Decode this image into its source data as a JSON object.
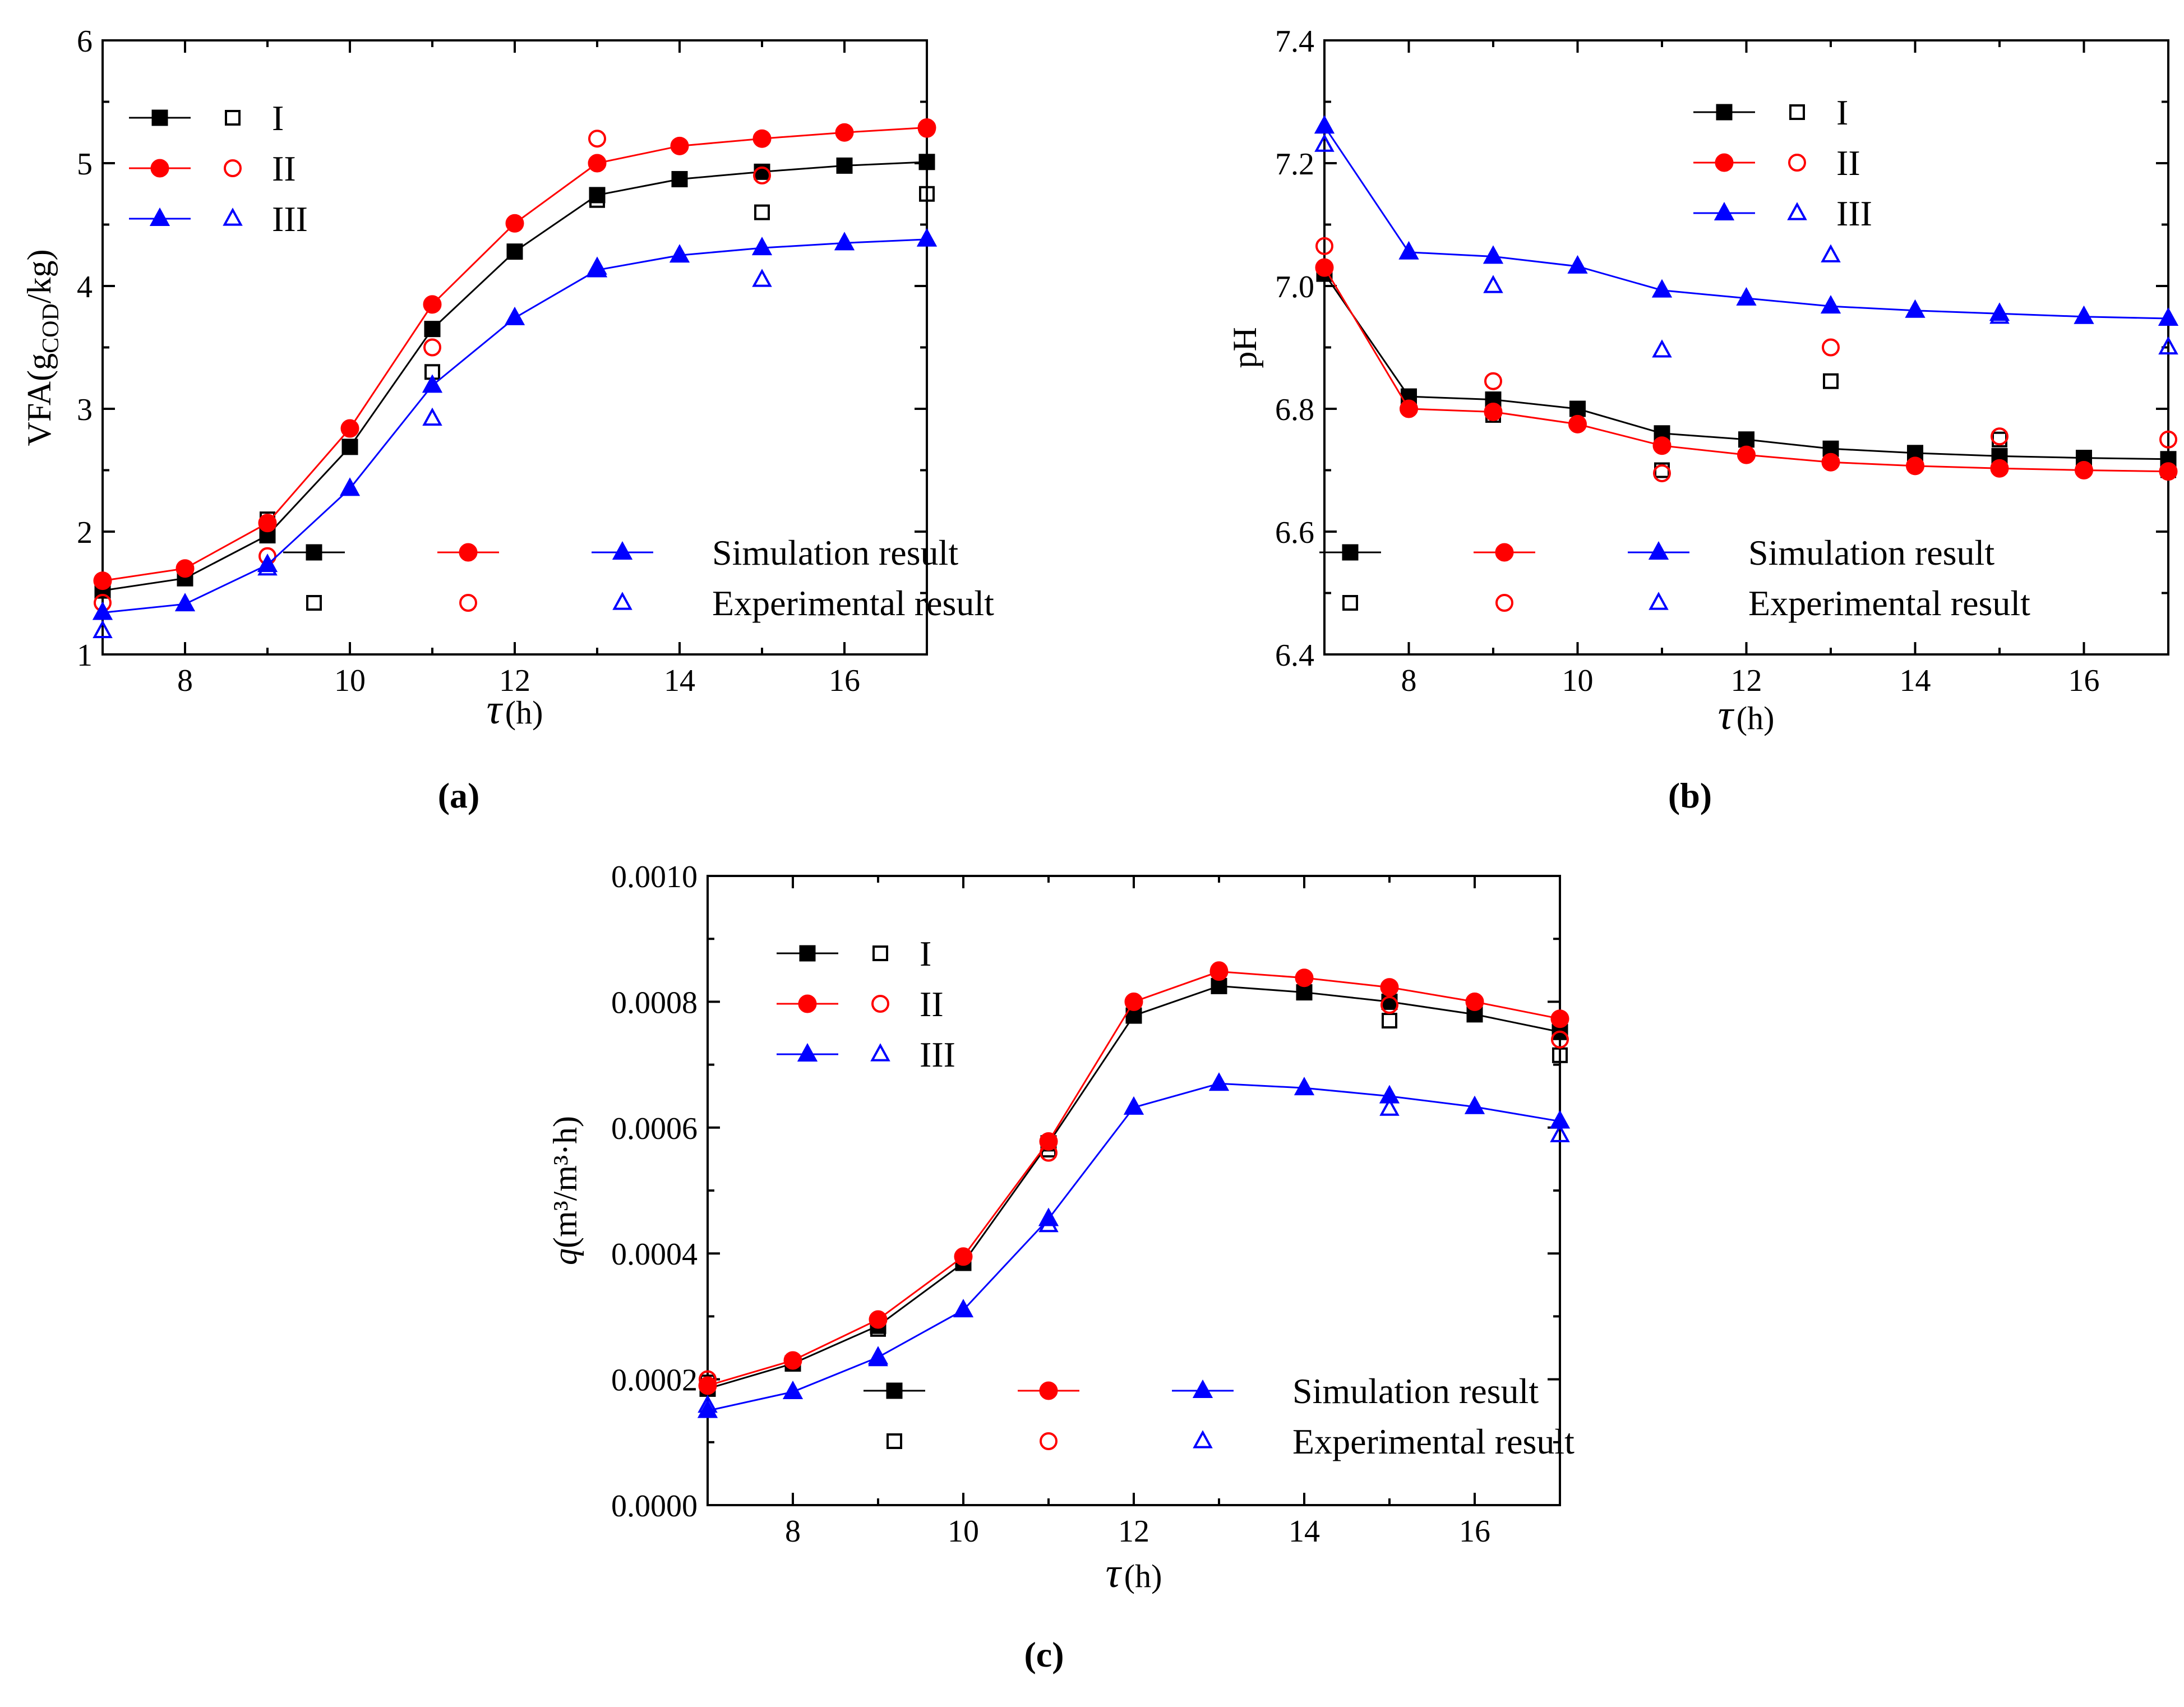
{
  "panels": [
    {
      "label": "(a)",
      "chart_data": {
        "type": "line",
        "ylabel": "VFA(g_COD/kg)",
        "ylabel_main": "VFA(g",
        "ylabel_sub": "COD",
        "ylabel_end": "/kg)",
        "xlabel_tau": "τ",
        "xlabel_unit": "(h)",
        "xlim": [
          7,
          17
        ],
        "ylim": [
          1,
          6
        ],
        "xticks": [
          8,
          10,
          12,
          14,
          16
        ],
        "yticks": [
          1,
          2,
          3,
          4,
          5,
          6
        ],
        "ytick_labels": [
          "1",
          "2",
          "3",
          "4",
          "5",
          "6"
        ],
        "series": [
          {
            "name": "I",
            "color": "#000000",
            "marker": "square",
            "sim_x": [
              7,
              8,
              9,
              10,
              11,
              12,
              13,
              14,
              15,
              16,
              17
            ],
            "sim_y": [
              1.52,
              1.62,
              1.97,
              2.69,
              3.65,
              4.28,
              4.74,
              4.87,
              4.93,
              4.98,
              5.01
            ],
            "exp_x": [
              7,
              9,
              11,
              13,
              15,
              17
            ],
            "exp_y": [
              1.55,
              2.1,
              3.3,
              4.7,
              4.6,
              4.75
            ]
          },
          {
            "name": "II",
            "color": "#ff0000",
            "marker": "circle",
            "sim_x": [
              7,
              8,
              9,
              10,
              11,
              12,
              13,
              14,
              15,
              16,
              17
            ],
            "sim_y": [
              1.6,
              1.7,
              2.07,
              2.84,
              3.85,
              4.51,
              5.0,
              5.14,
              5.2,
              5.25,
              5.29
            ],
            "exp_x": [
              7,
              9,
              11,
              13,
              15,
              17
            ],
            "exp_y": [
              1.42,
              1.8,
              3.5,
              5.2,
              4.9,
              5.28
            ]
          },
          {
            "name": "III",
            "color": "#0000ff",
            "marker": "triangle",
            "sim_x": [
              7,
              8,
              9,
              10,
              11,
              12,
              13,
              14,
              15,
              16,
              17
            ],
            "sim_y": [
              1.34,
              1.41,
              1.73,
              2.35,
              3.19,
              3.74,
              4.13,
              4.25,
              4.31,
              4.35,
              4.38
            ],
            "exp_x": [
              7,
              9,
              11,
              13,
              15,
              17
            ],
            "exp_y": [
              1.19,
              1.7,
              2.92,
              4.15,
              4.05,
              4.38
            ]
          }
        ],
        "legend_sim": "Simulation result",
        "legend_exp": "Experimental result"
      }
    },
    {
      "label": "(b)",
      "chart_data": {
        "type": "line",
        "ylabel": "pH",
        "xlabel_tau": "τ",
        "xlabel_unit": "(h)",
        "xlim": [
          7,
          17
        ],
        "ylim": [
          6.4,
          7.4
        ],
        "xticks": [
          8,
          10,
          12,
          14,
          16
        ],
        "yticks": [
          6.4,
          6.6,
          6.8,
          7.0,
          7.2,
          7.4
        ],
        "ytick_labels": [
          "6.4",
          "6.6",
          "6.8",
          "7.0",
          "7.2",
          "7.4"
        ],
        "series": [
          {
            "name": "I",
            "color": "#000000",
            "marker": "square",
            "sim_x": [
              7,
              8,
              9,
              10,
              11,
              12,
              13,
              14,
              15,
              16,
              17
            ],
            "sim_y": [
              7.02,
              6.82,
              6.815,
              6.8,
              6.76,
              6.75,
              6.735,
              6.728,
              6.723,
              6.72,
              6.718
            ],
            "exp_x": [
              7,
              9,
              11,
              13,
              15,
              17
            ],
            "exp_y": [
              7.02,
              6.79,
              6.7,
              6.845,
              6.75,
              6.7
            ]
          },
          {
            "name": "II",
            "color": "#ff0000",
            "marker": "circle",
            "sim_x": [
              7,
              8,
              9,
              10,
              11,
              12,
              13,
              14,
              15,
              16,
              17
            ],
            "sim_y": [
              7.03,
              6.8,
              6.795,
              6.775,
              6.74,
              6.725,
              6.713,
              6.707,
              6.703,
              6.7,
              6.698
            ],
            "exp_x": [
              7,
              9,
              11,
              13,
              15,
              17
            ],
            "exp_y": [
              7.065,
              6.845,
              6.695,
              6.9,
              6.755,
              6.75
            ]
          },
          {
            "name": "III",
            "color": "#0000ff",
            "marker": "triangle",
            "sim_x": [
              7,
              8,
              9,
              10,
              11,
              12,
              13,
              14,
              15,
              16,
              17
            ],
            "sim_y": [
              7.26,
              7.055,
              7.048,
              7.032,
              6.993,
              6.98,
              6.967,
              6.96,
              6.955,
              6.95,
              6.947
            ],
            "exp_x": [
              7,
              9,
              11,
              13,
              15,
              17
            ],
            "exp_y": [
              7.23,
              7.0,
              6.895,
              7.05,
              6.95,
              6.9
            ]
          }
        ],
        "legend_sim": "Simulation result",
        "legend_exp": "Experimental result"
      }
    },
    {
      "label": "(c)",
      "chart_data": {
        "type": "line",
        "ylabel": "q(m³/m³·h)",
        "ylabel_q": "q",
        "ylabel_rest": "(m³/m³·h)",
        "xlabel_tau": "τ",
        "xlabel_unit": "(h)",
        "xlim": [
          7,
          17
        ],
        "ylim": [
          0,
          0.001
        ],
        "xticks": [
          8,
          10,
          12,
          14,
          16
        ],
        "yticks": [
          0,
          0.0002,
          0.0004,
          0.0006,
          0.0008,
          0.001
        ],
        "ytick_labels": [
          "0.0000",
          "0.0002",
          "0.0004",
          "0.0006",
          "0.0008",
          "0.0010"
        ],
        "series": [
          {
            "name": "I",
            "color": "#000000",
            "marker": "square",
            "sim_x": [
              7,
              8,
              9,
              10,
              11,
              12,
              13,
              14,
              15,
              16,
              17
            ],
            "sim_y": [
              0.000185,
              0.000225,
              0.000285,
              0.000385,
              0.000575,
              0.000778,
              0.000825,
              0.000815,
              0.0008,
              0.00078,
              0.000752
            ],
            "exp_x": [
              7,
              9,
              11,
              13,
              15,
              17
            ],
            "exp_y": [
              0.000195,
              0.00028,
              0.000565,
              0.000825,
              0.00077,
              0.000715
            ]
          },
          {
            "name": "II",
            "color": "#ff0000",
            "marker": "circle",
            "sim_x": [
              7,
              8,
              9,
              10,
              11,
              12,
              13,
              14,
              15,
              16,
              17
            ],
            "sim_y": [
              0.00019,
              0.00023,
              0.000295,
              0.000395,
              0.000578,
              0.0008,
              0.000848,
              0.000838,
              0.000823,
              0.0008,
              0.000773
            ],
            "exp_x": [
              7,
              9,
              11,
              13,
              15,
              17
            ],
            "exp_y": [
              0.0002,
              0.000295,
              0.00056,
              0.00085,
              0.000795,
              0.00074
            ]
          },
          {
            "name": "III",
            "color": "#0000ff",
            "marker": "triangle",
            "sim_x": [
              7,
              8,
              9,
              10,
              11,
              12,
              13,
              14,
              15,
              16,
              17
            ],
            "sim_y": [
              0.00015,
              0.00018,
              0.000235,
              0.00031,
              0.000455,
              0.000632,
              0.00067,
              0.000663,
              0.00065,
              0.000633,
              0.00061
            ],
            "exp_x": [
              7,
              9,
              11,
              13,
              15,
              17
            ],
            "exp_y": [
              0.000158,
              0.000232,
              0.000445,
              0.00067,
              0.00063,
              0.000588
            ]
          }
        ],
        "legend_sim": "Simulation result",
        "legend_exp": "Experimental result"
      }
    }
  ]
}
